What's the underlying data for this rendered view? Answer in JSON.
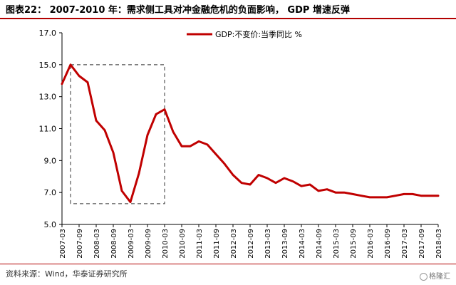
{
  "header": {
    "title": "图表22：  2007-2010 年：需求侧工具对冲金融危机的负面影响，  GDP 增速反弹"
  },
  "footer": {
    "source": "资料来源：Wind，华泰证券研究所",
    "watermark": "格隆汇"
  },
  "chart_data": {
    "type": "line",
    "title": "",
    "xlabel": "",
    "ylabel": "",
    "ylim": [
      5.0,
      17.0
    ],
    "yticks": [
      "5.0",
      "7.0",
      "9.0",
      "11.0",
      "13.0",
      "15.0",
      "17.0"
    ],
    "xticks": [
      "2007-03",
      "2007-09",
      "2008-03",
      "2008-09",
      "2009-03",
      "2009-09",
      "2010-03",
      "2010-09",
      "2011-03",
      "2011-09",
      "2012-03",
      "2012-09",
      "2013-03",
      "2013-09",
      "2014-03",
      "2014-09",
      "2015-03",
      "2015-09",
      "2016-03",
      "2016-09",
      "2017-03",
      "2017-09",
      "2018-03"
    ],
    "grid": false,
    "legend_position": "top-center",
    "line_color": "#c00000",
    "series": [
      {
        "name": "GDP:不变价:当季同比 %",
        "x": [
          "2007-03",
          "2007-06",
          "2007-09",
          "2007-12",
          "2008-03",
          "2008-06",
          "2008-09",
          "2008-12",
          "2009-03",
          "2009-06",
          "2009-09",
          "2009-12",
          "2010-03",
          "2010-06",
          "2010-09",
          "2010-12",
          "2011-03",
          "2011-06",
          "2011-09",
          "2011-12",
          "2012-03",
          "2012-06",
          "2012-09",
          "2012-12",
          "2013-03",
          "2013-06",
          "2013-09",
          "2013-12",
          "2014-03",
          "2014-06",
          "2014-09",
          "2014-12",
          "2015-03",
          "2015-06",
          "2015-09",
          "2015-12",
          "2016-03",
          "2016-06",
          "2016-09",
          "2016-12",
          "2017-03",
          "2017-06",
          "2017-09",
          "2017-12",
          "2018-03"
        ],
        "values": [
          13.8,
          15.0,
          14.3,
          13.9,
          11.5,
          10.9,
          9.5,
          7.1,
          6.4,
          8.2,
          10.6,
          11.9,
          12.2,
          10.8,
          9.9,
          9.9,
          10.2,
          10.0,
          9.4,
          8.8,
          8.1,
          7.6,
          7.5,
          8.1,
          7.9,
          7.6,
          7.9,
          7.7,
          7.4,
          7.5,
          7.1,
          7.2,
          7.0,
          7.0,
          6.9,
          6.8,
          6.7,
          6.7,
          6.7,
          6.8,
          6.9,
          6.9,
          6.8,
          6.8,
          6.8
        ]
      }
    ],
    "highlight_box": {
      "x_start": "2007-06",
      "x_end": "2010-03",
      "y_low": 6.3,
      "y_high": 15.0
    }
  }
}
